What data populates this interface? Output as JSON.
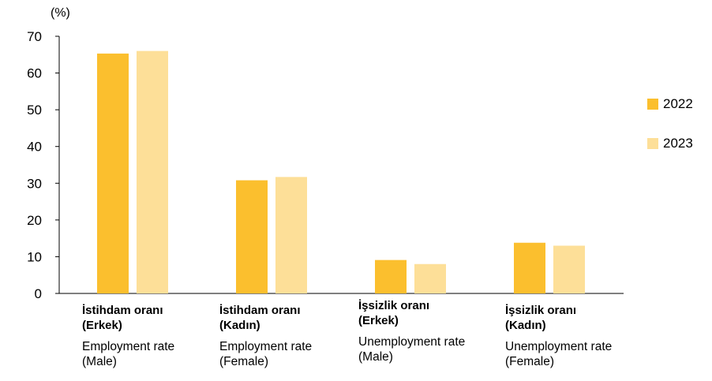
{
  "chart_data": {
    "type": "bar",
    "unit_label": "(%)",
    "ylim": [
      0,
      70
    ],
    "yticks": [
      0,
      10,
      20,
      30,
      40,
      50,
      60,
      70
    ],
    "grid": false,
    "legend_position": "right",
    "categories": [
      {
        "tr": "İstihdam oranı\n(Erkek)",
        "en": "Employment rate\n(Male)"
      },
      {
        "tr": "İstihdam oranı\n(Kadın)",
        "en": "Employment rate\n(Female)"
      },
      {
        "tr": "İşsizlik oranı\n(Erkek)",
        "en": "Unemployment rate\n(Male)"
      },
      {
        "tr": "İşsizlik oranı\n(Kadın)",
        "en": "Unemployment rate\n(Female)"
      }
    ],
    "series": [
      {
        "name": "2022",
        "color": "#FBBF2E",
        "values": [
          65.3,
          30.8,
          9.1,
          13.8
        ]
      },
      {
        "name": "2023",
        "color": "#FDDF98",
        "values": [
          66.0,
          31.7,
          8.0,
          13.0
        ]
      }
    ]
  }
}
